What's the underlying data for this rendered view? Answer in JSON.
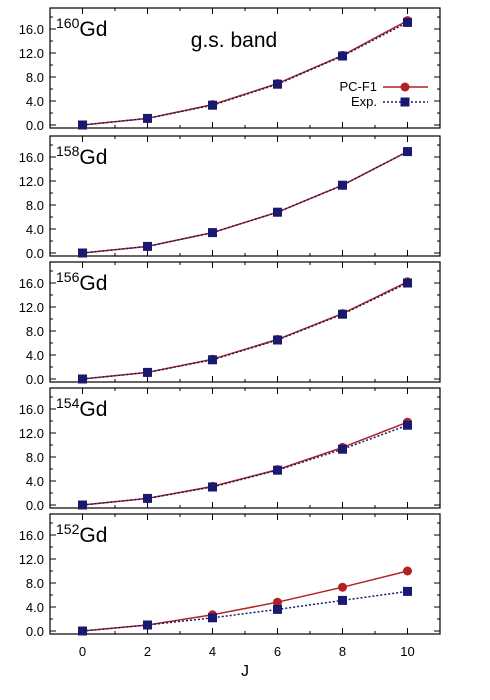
{
  "colors": {
    "theory": "#b22222",
    "experiment": "#191970",
    "axis": "#000000"
  },
  "legend": {
    "theory_label": "PC-F1",
    "experiment_label": "Exp."
  },
  "band_label": "g.s. band",
  "chart_data": [
    {
      "type": "line",
      "isotope_mass": "160",
      "isotope_symbol": "Gd",
      "x": [
        0,
        2,
        4,
        6,
        8,
        10
      ],
      "series": [
        {
          "name": "PC-F1",
          "values": [
            0.0,
            1.1,
            3.4,
            6.9,
            11.6,
            17.4
          ],
          "style": "solid",
          "marker": "circle"
        },
        {
          "name": "Exp.",
          "values": [
            0.0,
            1.1,
            3.3,
            6.8,
            11.5,
            17.1
          ],
          "style": "dotted",
          "marker": "square"
        }
      ],
      "yticks": [
        "0.0",
        "4.0",
        "8.0",
        "12.0",
        "16.0"
      ],
      "ylim": [
        -0.5,
        19.5
      ],
      "xlim": [
        -1,
        11
      ]
    },
    {
      "type": "line",
      "isotope_mass": "158",
      "isotope_symbol": "Gd",
      "x": [
        0,
        2,
        4,
        6,
        8,
        10
      ],
      "series": [
        {
          "name": "PC-F1",
          "values": [
            0.0,
            1.1,
            3.4,
            6.8,
            11.3,
            16.9
          ],
          "style": "solid",
          "marker": "circle"
        },
        {
          "name": "Exp.",
          "values": [
            0.0,
            1.1,
            3.4,
            6.8,
            11.3,
            16.9
          ],
          "style": "dotted",
          "marker": "square"
        }
      ],
      "yticks": [
        "0.0",
        "4.0",
        "8.0",
        "12.0",
        "16.0"
      ],
      "ylim": [
        -0.5,
        19.5
      ],
      "xlim": [
        -1,
        11
      ]
    },
    {
      "type": "line",
      "isotope_mass": "156",
      "isotope_symbol": "Gd",
      "x": [
        0,
        2,
        4,
        6,
        8,
        10
      ],
      "series": [
        {
          "name": "PC-F1",
          "values": [
            0.0,
            1.1,
            3.3,
            6.6,
            10.9,
            16.2
          ],
          "style": "solid",
          "marker": "circle"
        },
        {
          "name": "Exp.",
          "values": [
            0.0,
            1.1,
            3.2,
            6.5,
            10.8,
            16.0
          ],
          "style": "dotted",
          "marker": "square"
        }
      ],
      "yticks": [
        "0.0",
        "4.0",
        "8.0",
        "12.0",
        "16.0"
      ],
      "ylim": [
        -0.5,
        19.5
      ],
      "xlim": [
        -1,
        11
      ]
    },
    {
      "type": "line",
      "isotope_mass": "154",
      "isotope_symbol": "Gd",
      "x": [
        0,
        2,
        4,
        6,
        8,
        10
      ],
      "series": [
        {
          "name": "PC-F1",
          "values": [
            0.0,
            1.1,
            3.1,
            5.9,
            9.6,
            13.8
          ],
          "style": "solid",
          "marker": "circle"
        },
        {
          "name": "Exp.",
          "values": [
            0.0,
            1.1,
            3.0,
            5.8,
            9.3,
            13.3
          ],
          "style": "dotted",
          "marker": "square"
        }
      ],
      "yticks": [
        "0.0",
        "4.0",
        "8.0",
        "12.0",
        "16.0"
      ],
      "ylim": [
        -0.5,
        19.5
      ],
      "xlim": [
        -1,
        11
      ]
    },
    {
      "type": "line",
      "isotope_mass": "152",
      "isotope_symbol": "Gd",
      "x": [
        0,
        2,
        4,
        6,
        8,
        10
      ],
      "series": [
        {
          "name": "PC-F1",
          "values": [
            0.0,
            1.0,
            2.7,
            4.8,
            7.3,
            10.0
          ],
          "style": "solid",
          "marker": "circle"
        },
        {
          "name": "Exp.",
          "values": [
            0.0,
            1.0,
            2.2,
            3.6,
            5.1,
            6.6
          ],
          "style": "dotted",
          "marker": "square"
        }
      ],
      "yticks": [
        "0.0",
        "4.0",
        "8.0",
        "12.0",
        "16.0"
      ],
      "ylim": [
        -0.5,
        19.5
      ],
      "xlim": [
        -1,
        11
      ]
    }
  ],
  "x_axis": {
    "label": "J",
    "ticks": [
      "0",
      "2",
      "4",
      "6",
      "8",
      "10"
    ]
  }
}
